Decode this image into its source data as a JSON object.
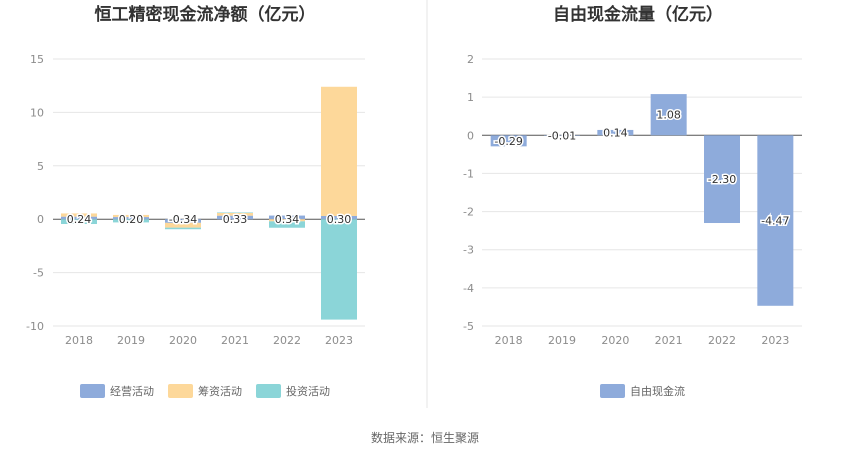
{
  "source_text": "数据来源：恒生聚源",
  "chart_data": [
    {
      "type": "bar",
      "title": "恒工精密现金流净额（亿元）",
      "categories": [
        "2018",
        "2019",
        "2020",
        "2021",
        "2022",
        "2023"
      ],
      "ylim": [
        -10,
        15
      ],
      "yticks": [
        "15",
        "10",
        "5",
        "0",
        "-5",
        "-10"
      ],
      "grid": true,
      "legend_position": "bottom",
      "series": [
        {
          "name": "经营活动",
          "color": "#8eabdb",
          "values": [
            0.24,
            0.2,
            -0.34,
            0.33,
            0.34,
            0.3
          ]
        },
        {
          "name": "筹资活动",
          "color": "#fdd89a",
          "values": [
            0.3,
            0.2,
            -0.45,
            0.25,
            -0.2,
            12.1
          ]
        },
        {
          "name": "投资活动",
          "color": "#8bd5d8",
          "values": [
            -0.45,
            -0.3,
            -0.15,
            0.05,
            -0.6,
            -9.4
          ]
        }
      ],
      "data_labels": [
        "0.24",
        "0.20",
        "-0.34",
        "0.33",
        "0.34",
        "0.30"
      ]
    },
    {
      "type": "bar",
      "title": "自由现金流量（亿元）",
      "categories": [
        "2018",
        "2019",
        "2020",
        "2021",
        "2022",
        "2023"
      ],
      "ylim": [
        -5,
        2
      ],
      "yticks": [
        "2",
        "1",
        "0",
        "-1",
        "-2",
        "-3",
        "-4",
        "-5"
      ],
      "grid": true,
      "legend_position": "bottom",
      "series": [
        {
          "name": "自由现金流",
          "color": "#8eabdb",
          "values": [
            -0.29,
            -0.01,
            0.14,
            1.08,
            -2.3,
            -4.47
          ]
        }
      ],
      "data_labels": [
        "-0.29",
        "-0.01",
        "0.14",
        "1.08",
        "-2.30",
        "-4.47"
      ]
    }
  ]
}
